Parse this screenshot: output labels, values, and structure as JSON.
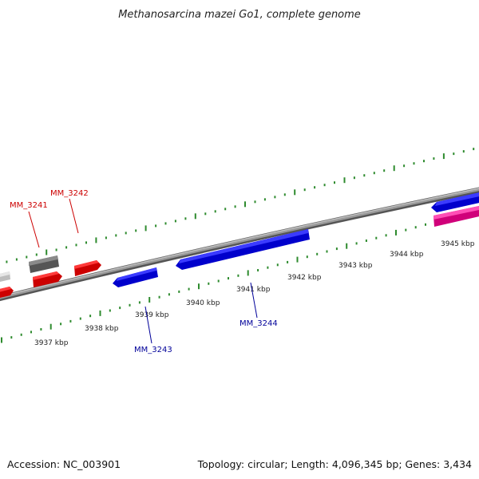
{
  "title": "Methanosarcina mazei Go1, complete genome",
  "footer": {
    "accession": "Accession: NC_003901",
    "summary": "Topology: circular; Length: 4,096,345 bp; Genes: 3,434"
  },
  "colors": {
    "background": "#ffffff",
    "backbone": "#888888",
    "ticks": "#2e8b2e",
    "forward_gene": "#ff0000",
    "reverse_gene": "#0000ff",
    "pink_gene": "#ff2aa0",
    "gray_gene": "#666666",
    "light_gene": "#cccccc",
    "label_red": "#cc0000",
    "label_blue": "#000099"
  },
  "kbp_labels": [
    "3937 kbp",
    "3938 kbp",
    "3939 kbp",
    "3940 kbp",
    "3941 kbp",
    "3942 kbp",
    "3943 kbp",
    "3944 kbp",
    "3945 kbp"
  ],
  "gene_labels": {
    "mm3241": "MM_3241",
    "mm3242": "MM_3242",
    "mm3243": "MM_3243",
    "mm3244": "MM_3244"
  }
}
